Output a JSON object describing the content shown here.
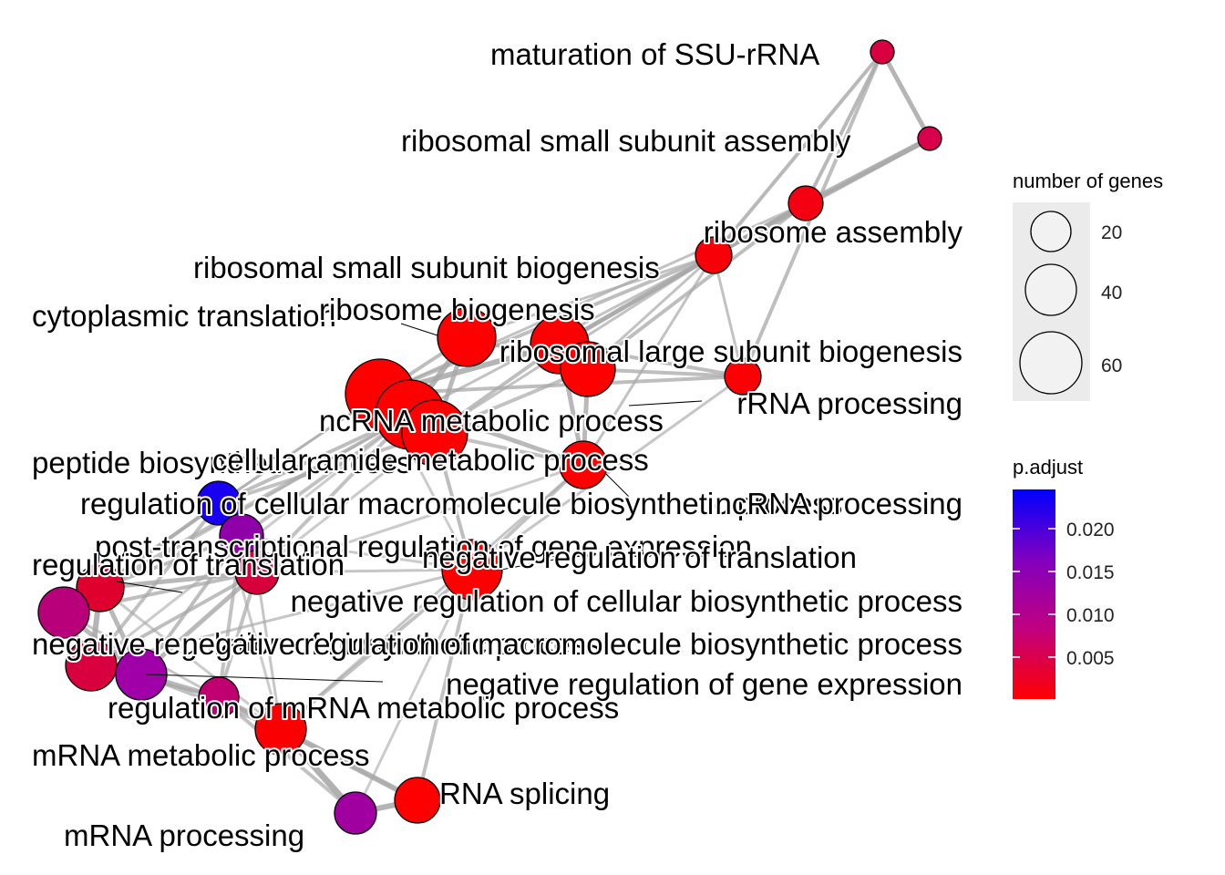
{
  "legend": {
    "size_title": "number of genes",
    "size_values": [
      "20",
      "40",
      "60"
    ],
    "color_title": "p.adjust",
    "color_values": [
      "0.020",
      "0.015",
      "0.010",
      "0.005"
    ],
    "gradient_colors": [
      "#0000ff",
      "#8000c0",
      "#c00080",
      "#ff0000"
    ]
  },
  "nodes": [
    {
      "id": "ssu_rrna",
      "label": "maturation of SSU-rRNA"
    },
    {
      "id": "small_assembly",
      "label": "ribosomal small subunit assembly"
    },
    {
      "id": "ribosome_assembly",
      "label": "ribosome assembly"
    },
    {
      "id": "small_biogenesis",
      "label": "ribosomal small subunit biogenesis"
    },
    {
      "id": "cytoplasmic_translation",
      "label": "cytoplasmic translation"
    },
    {
      "id": "ribosome_biogenesis",
      "label": "ribosome biogenesis"
    },
    {
      "id": "large_biogenesis",
      "label": "ribosomal large subunit biogenesis"
    },
    {
      "id": "rrna_processing",
      "label": "rRNA processing"
    },
    {
      "id": "ncrna_metabolic",
      "label": "ncRNA metabolic process"
    },
    {
      "id": "peptide_bio",
      "label": "peptide biosynthetic process"
    },
    {
      "id": "amide_metabolic",
      "label": "cellular amide metabolic process"
    },
    {
      "id": "macromol_bio",
      "label": "regulation of cellular macromolecule biosynthetic process"
    },
    {
      "id": "ncrna_processing",
      "label": "ncRNA processing"
    },
    {
      "id": "post_transcriptional",
      "label": "post-transcriptional regulation of gene expression"
    },
    {
      "id": "reg_translation",
      "label": "regulation of translation"
    },
    {
      "id": "neg_cell_bio",
      "label": "negative regulation of cellular biosynthetic process"
    },
    {
      "id": "neg_translation",
      "label": "negative regulation of translation"
    },
    {
      "id": "neg_bio",
      "label": "negative regulation of biosynthetic process"
    },
    {
      "id": "neg_macromol_bio",
      "label": "negative regulation of macromolecule biosynthetic process"
    },
    {
      "id": "neg_gene_expr",
      "label": "negative regulation of gene expression"
    },
    {
      "id": "reg_mrna",
      "label": "regulation of mRNA metabolic process"
    },
    {
      "id": "mrna_metabolic",
      "label": "mRNA metabolic process"
    },
    {
      "id": "rna_splicing",
      "label": "RNA splicing"
    },
    {
      "id": "mrna_processing",
      "label": "mRNA processing"
    }
  ]
}
